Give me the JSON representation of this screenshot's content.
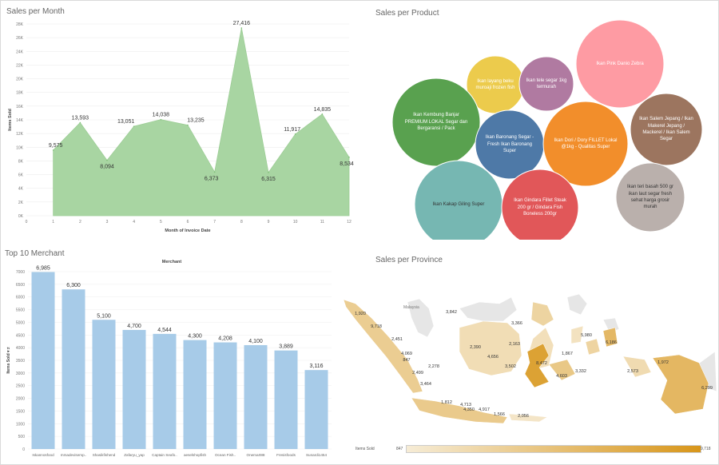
{
  "titles": {
    "month": "Sales per Month",
    "product": "Sales per Product",
    "merchant": "Top 10 Merchant",
    "province": "Sales per Province"
  },
  "chart_data": [
    {
      "type": "area",
      "title": "Sales per Month",
      "xlabel": "Month of Invoice Date",
      "ylabel": "Items Sold",
      "x": [
        1,
        2,
        3,
        4,
        5,
        6,
        7,
        8,
        9,
        10,
        11,
        12
      ],
      "values": [
        9575,
        13593,
        8094,
        13051,
        14038,
        13235,
        6373,
        27416,
        6315,
        11917,
        14835,
        8534
      ],
      "value_labels": [
        "9,575",
        "13,593",
        "8,094",
        "13,051",
        "14,038",
        "13,235",
        "6,373",
        "27,416",
        "6,315",
        "11,917",
        "14,835",
        "8,534"
      ],
      "x_ticks": [
        "0",
        "1",
        "2",
        "3",
        "4",
        "5",
        "6",
        "7",
        "8",
        "9",
        "10",
        "11",
        "12"
      ],
      "y_ticks": [
        "0K",
        "2K",
        "4K",
        "6K",
        "8K",
        "10K",
        "12K",
        "14K",
        "16K",
        "18K",
        "20K",
        "22K",
        "24K",
        "26K",
        "28K"
      ],
      "ylim": [
        0,
        28000
      ],
      "xlim": [
        0,
        12
      ],
      "color": "#a8d5a2"
    },
    {
      "type": "bar",
      "title": "Top 10 Merchant",
      "column_header": "Merchant",
      "ylabel": "Items Sold ▾ ≠",
      "categories": [
        "Iskannosfood",
        "mmadevisemp..",
        "Shasikfishend",
        "Zafaryu_yap",
        "Captain Seafo..",
        "aeselshopfish",
        "Ocean Fish..",
        "Onemart88",
        "Fresisfoods",
        "Sunardi1454"
      ],
      "values": [
        6985,
        6300,
        5100,
        4700,
        4544,
        4300,
        4208,
        4100,
        3889,
        3116
      ],
      "value_labels": [
        "6,985",
        "6,300",
        "5,100",
        "4,700",
        "4,544",
        "4,300",
        "4,208",
        "4,100",
        "3,889",
        "3,116"
      ],
      "y_ticks": [
        "0",
        "500",
        "1000",
        "1500",
        "2000",
        "2500",
        "3000",
        "3500",
        "4000",
        "4500",
        "5000",
        "5500",
        "6000",
        "6500",
        "7000"
      ],
      "ylim": [
        0,
        7000
      ],
      "color": "#a7cbe8"
    },
    {
      "type": "bubble",
      "title": "Sales per Product",
      "items": [
        {
          "label": "Ikan Pink Danio Zebra",
          "color": "#fe9ba3"
        },
        {
          "label": "Ikan layang beku muroaji frozen fish",
          "color": "#eccb4c"
        },
        {
          "label": "Ikan tele segar 1kg termurah",
          "color": "#b07aa1"
        },
        {
          "label": "Ikan Kembung Banjar PREMIUM LOKAL Segar dan Bergaransi / Pack",
          "color": "#59a14f"
        },
        {
          "label": "Ikan Baronang Segar - Fresh Ikan Baronang Super",
          "color": "#4e79a7"
        },
        {
          "label": "Ikan Dori / Dory FILLET Lokal @1kg - Qualitas Super",
          "color": "#f28e2b"
        },
        {
          "label": "Ikan Salem Jepang / Ikan Makerel Jepang / Mackerel / Ikan Salem Segar",
          "color": "#9c755f"
        },
        {
          "label": "Ikan teri basah 500 gr ikan laut segar fresh sehat harga grosir murah",
          "color": "#bab0ac"
        },
        {
          "label": "Ikan Kakap Giling Super",
          "color": "#76b7b2"
        },
        {
          "label": "Ikan Gindara Fillet Steak 200 gr / Gindara Fish Boneless 200gr",
          "color": "#e15759"
        }
      ]
    },
    {
      "type": "map",
      "title": "Sales per Province",
      "region_label": "Malaysia",
      "values": [
        1920,
        9718,
        2451,
        4069,
        847,
        2499,
        2278,
        3464,
        3842,
        3366,
        2390,
        4656,
        2163,
        3502,
        8472,
        1867,
        4603,
        3332,
        5980,
        6186,
        2573,
        1972,
        6299,
        1812,
        4713,
        4350,
        4917,
        1566,
        2056
      ],
      "labels": [
        "1,920",
        "9,718",
        "2,451",
        "4,069",
        "847",
        "2,499",
        "2,278",
        "3,464",
        "3,842",
        "3,366",
        "2,390",
        "4,656",
        "2,163",
        "3,502",
        "8,472",
        "1,867",
        "4,603",
        "3,332",
        "5,980",
        "6,186",
        "2,573",
        "1,972",
        "6,299",
        "1,812",
        "4,713",
        "4,350",
        "4,917",
        "1,566",
        "2,056"
      ],
      "legend": {
        "title": "Items Sold",
        "min_label": "847",
        "max_label": "9,718",
        "min": 847,
        "max": 9718
      },
      "colors": {
        "low": "#f6ecd6",
        "high": "#d8961a"
      }
    }
  ]
}
